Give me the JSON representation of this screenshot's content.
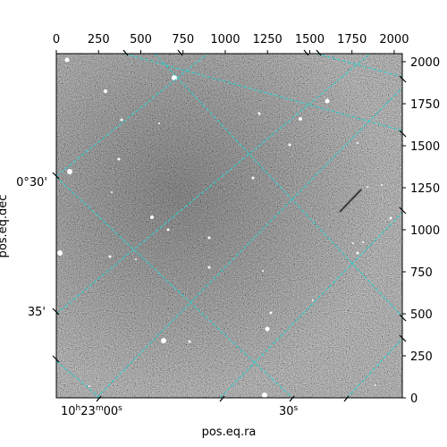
{
  "figure": {
    "x_axis_label": "pos.eq.ra",
    "y_axis_label": "pos.eq.dec",
    "top_ticks": [
      "0",
      "250",
      "500",
      "750",
      "1000",
      "1250",
      "1500",
      "1750",
      "2000"
    ],
    "right_ticks": [
      "0",
      "250",
      "500",
      "750",
      "1000",
      "1250",
      "1500",
      "1750",
      "2000"
    ],
    "ra_ticks": [
      {
        "hours": "10",
        "minutes": "23",
        "seconds": "00",
        "h": "h",
        "m": "m",
        "s": "s"
      },
      {
        "seconds": "30",
        "s": "s"
      }
    ],
    "dec_ticks": [
      "0°30'",
      "35'"
    ],
    "grid_color": "#33cccc"
  },
  "chart_data": {
    "type": "image",
    "pixel_range": {
      "x": [
        0,
        2048
      ],
      "y": [
        0,
        2048
      ]
    },
    "x_ticks": [
      0,
      250,
      500,
      750,
      1000,
      1250,
      1500,
      1750,
      2000
    ],
    "y_ticks": [
      0,
      250,
      500,
      750,
      1000,
      1250,
      1500,
      1750,
      2000
    ]
  }
}
